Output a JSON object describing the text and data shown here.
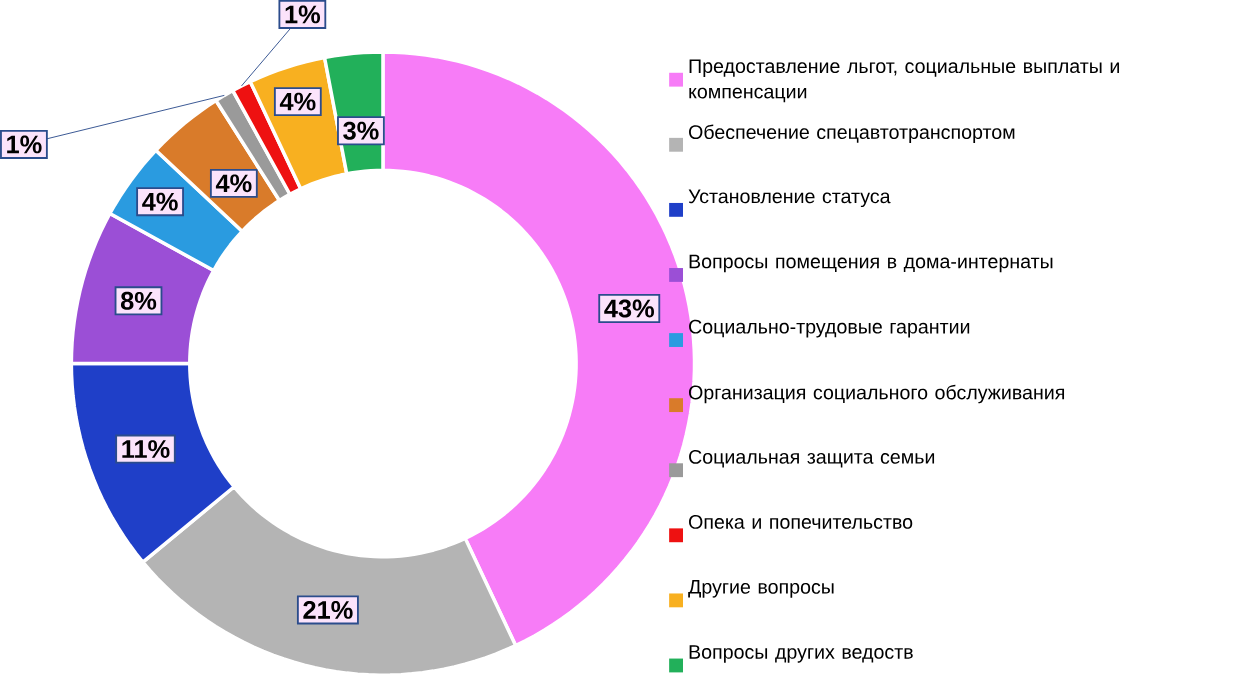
{
  "chart_data": {
    "type": "donut",
    "categories": [
      "Предоставление льгот, социальные выплаты и компенсации",
      "Обеспечение спецавтотранспортом",
      "Установление статуса",
      "Вопросы помещения в дома-интернаты",
      "Социально-трудовые гарантии",
      "Организация социального обслуживания",
      "Социальная защита семьи",
      "Опека и попечительство",
      "Другие вопросы",
      "Вопросы других ведоств"
    ],
    "values": [
      43,
      21,
      11,
      8,
      4,
      4,
      1,
      1,
      4,
      3
    ],
    "value_labels": [
      "43%",
      "21%",
      "11%",
      "8%",
      "4%",
      "4%",
      "1%",
      "1%",
      "4%",
      "3%"
    ],
    "colors": [
      "#f77cf7",
      "#b4b4b4",
      "#1f3fc8",
      "#9b4fd6",
      "#2a9be0",
      "#d97b2a",
      "#9a9a9a",
      "#ee1111",
      "#f8b020",
      "#22b05a"
    ],
    "legend": "right"
  }
}
